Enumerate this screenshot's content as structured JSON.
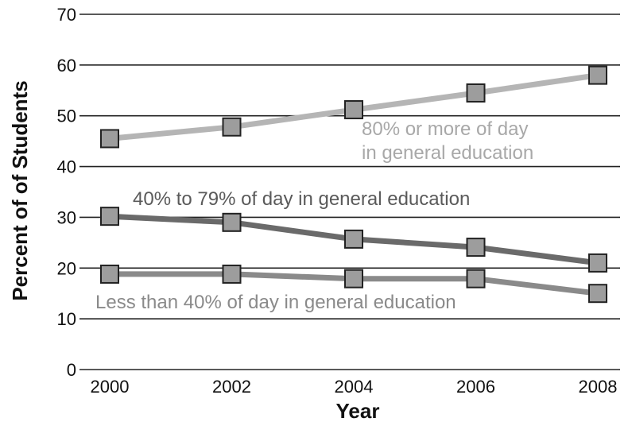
{
  "chart_data": {
    "type": "line",
    "title": "",
    "xlabel": "Year",
    "ylabel": "Percent of of Students",
    "x": [
      2000,
      2002,
      2004,
      2006,
      2008
    ],
    "x_ticks": [
      "2000",
      "2002",
      "2004",
      "2006",
      "2008"
    ],
    "y_ticks": [
      "0",
      "10",
      "20",
      "30",
      "40",
      "50",
      "60",
      "70"
    ],
    "ylim": [
      0,
      70
    ],
    "grid": "horizontal",
    "legend": "none (series labeled inline)",
    "series": [
      {
        "name": "80% or more of day in general education",
        "label_lines": [
          "80% or more of day",
          "in general education"
        ],
        "values": [
          45.5,
          47.8,
          51.2,
          54.5,
          58
        ],
        "line_color": "#b5b5b5",
        "label_color": "#a8a8a8",
        "marker": "square"
      },
      {
        "name": "40% to 79% of day in general education",
        "label_lines": [
          "40% to 79% of day in general education"
        ],
        "values": [
          30.2,
          29,
          25.7,
          24.1,
          21
        ],
        "line_color": "#6a6a6a",
        "label_color": "#5a5a5a",
        "marker": "square"
      },
      {
        "name": "Less than 40% of day in general education",
        "label_lines": [
          "Less than 40% of day in general education"
        ],
        "values": [
          18.8,
          18.8,
          17.9,
          17.9,
          15
        ],
        "line_color": "#8a8a8a",
        "label_color": "#8a8a8a",
        "marker": "square"
      }
    ],
    "marker_fill": "#9d9d9d",
    "marker_stroke": "#222222",
    "grid_color": "#222222"
  }
}
